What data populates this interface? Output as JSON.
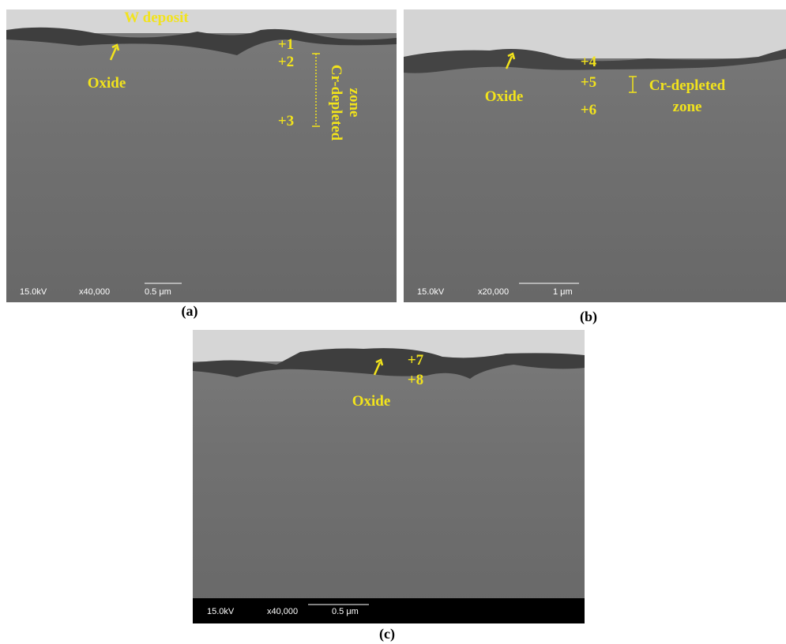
{
  "panels": [
    {
      "label": "(a)",
      "annotations": {
        "deposit": "W deposit",
        "oxide": "Oxide",
        "points": [
          "+1",
          "+2",
          "+3"
        ],
        "zone": [
          "Cr-depleted",
          "zone"
        ]
      },
      "info": {
        "voltage": "15.0kV",
        "magnification": "x40,000",
        "scale": "0.5 μm"
      }
    },
    {
      "label": "(b)",
      "annotations": {
        "oxide": "Oxide",
        "points": [
          "+4",
          "+5",
          "+6"
        ],
        "zone": [
          "Cr-depleted",
          "zone"
        ]
      },
      "info": {
        "voltage": "15.0kV",
        "magnification": "x20,000",
        "scale": "1 μm"
      }
    },
    {
      "label": "(c)",
      "annotations": {
        "oxide": "Oxide",
        "points": [
          "+7",
          "+8"
        ]
      },
      "info": {
        "voltage": "15.0kV",
        "magnification": "x40,000",
        "scale": "0.5 μm"
      }
    }
  ]
}
